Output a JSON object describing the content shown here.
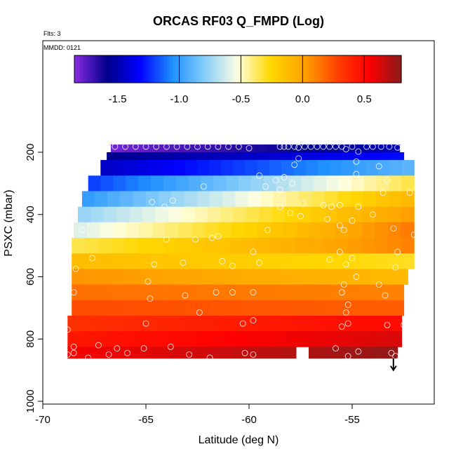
{
  "chart_data": {
    "type": "heatmap",
    "title": "ORCAS RF03 Q_FMPD (Log)",
    "corner_labels": {
      "flts": "Flts: 3",
      "mmdd": "MMDD: 0121"
    },
    "xlabel": "Latitude (deg N)",
    "ylabel": "PSXC (mbar)",
    "xlim": [
      -70,
      -51.5
    ],
    "ylim": [
      1000,
      0
    ],
    "x_ticks": [
      -70,
      -65,
      -60,
      -55
    ],
    "y_ticks": [
      200,
      400,
      600,
      800,
      1000
    ],
    "colorbar": {
      "range": [
        -1.85,
        0.8
      ],
      "ticks": [
        -1.5,
        -1.0,
        -0.5,
        0.0,
        0.5
      ],
      "tick_labels": [
        "-1.5",
        "-1.0",
        "-0.5",
        "0.0",
        "0.5"
      ],
      "colors": [
        "#8a2be2",
        "#00008b",
        "#0000ff",
        "#1e90ff",
        "#87cefa",
        "#ffffe0",
        "#ffd700",
        "#ffa500",
        "#ff4500",
        "#ff0000",
        "#8b1a1a"
      ]
    },
    "heat_bands": [
      {
        "p_top": 175,
        "p_bot": 200,
        "lat_start": -66.7,
        "lat_end": -52.7,
        "v_start": -1.8,
        "v_end": -1.48
      },
      {
        "p_top": 200,
        "p_bot": 225,
        "lat_start": -66.9,
        "lat_end": -52.5,
        "v_start": -1.58,
        "v_end": -1.3
      },
      {
        "p_top": 225,
        "p_bot": 275,
        "lat_start": -67.2,
        "lat_end": -52.0,
        "v_start": -1.45,
        "v_end": -0.9
      },
      {
        "p_top": 275,
        "p_bot": 325,
        "lat_start": -67.8,
        "lat_end": -52.0,
        "v_start": -1.2,
        "v_end": -0.35
      },
      {
        "p_top": 325,
        "p_bot": 375,
        "lat_start": -68.1,
        "lat_end": -52.0,
        "v_start": -1.0,
        "v_end": -0.1
      },
      {
        "p_top": 375,
        "p_bot": 425,
        "lat_start": -68.3,
        "lat_end": -52.0,
        "v_start": -0.75,
        "v_end": 0.02
      },
      {
        "p_top": 425,
        "p_bot": 475,
        "lat_start": -68.5,
        "lat_end": -52.0,
        "v_start": -0.6,
        "v_end": 0.12
      },
      {
        "p_top": 475,
        "p_bot": 525,
        "lat_start": -68.6,
        "lat_end": -52.0,
        "v_start": -0.35,
        "v_end": 0.1
      },
      {
        "p_top": 525,
        "p_bot": 575,
        "lat_start": -68.6,
        "lat_end": -52.0,
        "v_start": -0.12,
        "v_end": -0.3
      },
      {
        "p_top": 575,
        "p_bot": 625,
        "lat_start": -68.6,
        "lat_end": -52.3,
        "v_start": 0.05,
        "v_end": -0.1
      },
      {
        "p_top": 625,
        "p_bot": 675,
        "lat_start": -68.6,
        "lat_end": -52.5,
        "v_start": 0.15,
        "v_end": 0.1
      },
      {
        "p_top": 675,
        "p_bot": 725,
        "lat_start": -68.6,
        "lat_end": -52.5,
        "v_start": 0.25,
        "v_end": 0.2
      },
      {
        "p_top": 725,
        "p_bot": 775,
        "lat_start": -68.8,
        "lat_end": -52.6,
        "v_start": 0.35,
        "v_end": 0.5,
        "gap": [
          -57.7,
          -57.4
        ]
      },
      {
        "p_top": 775,
        "p_bot": 825,
        "lat_start": -68.8,
        "lat_end": -52.6,
        "v_start": 0.45,
        "v_end": 0.62,
        "gap": [
          -57.7,
          -57.3
        ]
      },
      {
        "p_top": 825,
        "p_bot": 862,
        "lat_start": -68.8,
        "lat_end": -52.8,
        "v_start": 0.55,
        "v_end": 0.78,
        "gap": [
          -57.7,
          -57.3
        ]
      }
    ],
    "points": [
      {
        "x": -66.5,
        "y": 182
      },
      {
        "x": -66,
        "y": 182
      },
      {
        "x": -65.5,
        "y": 182
      },
      {
        "x": -65,
        "y": 182
      },
      {
        "x": -64.5,
        "y": 182
      },
      {
        "x": -64,
        "y": 182
      },
      {
        "x": -63.5,
        "y": 182
      },
      {
        "x": -63,
        "y": 182
      },
      {
        "x": -62.5,
        "y": 182
      },
      {
        "x": -62,
        "y": 182
      },
      {
        "x": -61.5,
        "y": 182
      },
      {
        "x": -61,
        "y": 182
      },
      {
        "x": -60.5,
        "y": 182
      },
      {
        "x": -60,
        "y": 187
      },
      {
        "x": -58.5,
        "y": 182
      },
      {
        "x": -58.3,
        "y": 182
      },
      {
        "x": -58.1,
        "y": 182
      },
      {
        "x": -57.8,
        "y": 182
      },
      {
        "x": -57.6,
        "y": 185
      },
      {
        "x": -57.3,
        "y": 182
      },
      {
        "x": -57,
        "y": 182
      },
      {
        "x": -56.7,
        "y": 182
      },
      {
        "x": -56.4,
        "y": 182
      },
      {
        "x": -56.1,
        "y": 182
      },
      {
        "x": -55.8,
        "y": 182
      },
      {
        "x": -55.5,
        "y": 182
      },
      {
        "x": -55.3,
        "y": 190
      },
      {
        "x": -55,
        "y": 182
      },
      {
        "x": -54.7,
        "y": 198
      },
      {
        "x": -54.3,
        "y": 182
      },
      {
        "x": -54,
        "y": 182
      },
      {
        "x": -53.6,
        "y": 182
      },
      {
        "x": -53.2,
        "y": 182
      },
      {
        "x": -52.8,
        "y": 185
      },
      {
        "x": -57.8,
        "y": 240
      },
      {
        "x": -57.6,
        "y": 220
      },
      {
        "x": -54.8,
        "y": 230
      },
      {
        "x": -53.7,
        "y": 245
      },
      {
        "x": -59.5,
        "y": 275
      },
      {
        "x": -58.7,
        "y": 290
      },
      {
        "x": -58.3,
        "y": 280
      },
      {
        "x": -54.8,
        "y": 270
      },
      {
        "x": -53.3,
        "y": 290
      },
      {
        "x": -62.2,
        "y": 310
      },
      {
        "x": -57.9,
        "y": 300
      },
      {
        "x": -59.2,
        "y": 310
      },
      {
        "x": -58.5,
        "y": 320
      },
      {
        "x": -53.5,
        "y": 330
      },
      {
        "x": -52.2,
        "y": 330
      },
      {
        "x": -64.7,
        "y": 360
      },
      {
        "x": -64.1,
        "y": 375
      },
      {
        "x": -63.7,
        "y": 355
      },
      {
        "x": -58.5,
        "y": 375
      },
      {
        "x": -57.4,
        "y": 365
      },
      {
        "x": -56.4,
        "y": 370
      },
      {
        "x": -56,
        "y": 375
      },
      {
        "x": -55.6,
        "y": 370
      },
      {
        "x": -54.7,
        "y": 375
      },
      {
        "x": -58,
        "y": 395
      },
      {
        "x": -57.5,
        "y": 405
      },
      {
        "x": -56.2,
        "y": 415
      },
      {
        "x": -55,
        "y": 420
      },
      {
        "x": -54,
        "y": 400
      },
      {
        "x": -68.1,
        "y": 450
      },
      {
        "x": -59.1,
        "y": 450
      },
      {
        "x": -55.4,
        "y": 450
      },
      {
        "x": -55.6,
        "y": 435
      },
      {
        "x": -53,
        "y": 445
      },
      {
        "x": -52,
        "y": 465
      },
      {
        "x": -61.8,
        "y": 475
      },
      {
        "x": -61.5,
        "y": 470
      },
      {
        "x": -64,
        "y": 480
      },
      {
        "x": -55.6,
        "y": 520
      },
      {
        "x": -59.8,
        "y": 520
      },
      {
        "x": -62.6,
        "y": 480
      },
      {
        "x": -55,
        "y": 540
      },
      {
        "x": -52.8,
        "y": 520
      },
      {
        "x": -68.4,
        "y": 575
      },
      {
        "x": -67.6,
        "y": 540
      },
      {
        "x": -64.6,
        "y": 560
      },
      {
        "x": -63.2,
        "y": 555
      },
      {
        "x": -61.3,
        "y": 550
      },
      {
        "x": -60.8,
        "y": 565
      },
      {
        "x": -59.5,
        "y": 555
      },
      {
        "x": -56.1,
        "y": 545
      },
      {
        "x": -55.3,
        "y": 560
      },
      {
        "x": -52.9,
        "y": 570
      },
      {
        "x": -64.9,
        "y": 615
      },
      {
        "x": -54.8,
        "y": 600
      },
      {
        "x": -55.4,
        "y": 625
      },
      {
        "x": -55.5,
        "y": 650
      },
      {
        "x": -53.7,
        "y": 625
      },
      {
        "x": -52.1,
        "y": 650
      },
      {
        "x": -68.5,
        "y": 650
      },
      {
        "x": -63.1,
        "y": 660
      },
      {
        "x": -61.6,
        "y": 650
      },
      {
        "x": -60.8,
        "y": 650
      },
      {
        "x": -59.8,
        "y": 650
      },
      {
        "x": -53.4,
        "y": 660
      },
      {
        "x": -64.8,
        "y": 670
      },
      {
        "x": -55.3,
        "y": 715
      },
      {
        "x": -55.2,
        "y": 690
      },
      {
        "x": -52.3,
        "y": 690
      },
      {
        "x": -62.4,
        "y": 715
      },
      {
        "x": -68.8,
        "y": 770
      },
      {
        "x": -65,
        "y": 750
      },
      {
        "x": -60.3,
        "y": 750
      },
      {
        "x": -59.8,
        "y": 740
      },
      {
        "x": -55.5,
        "y": 760
      },
      {
        "x": -55.2,
        "y": 750
      },
      {
        "x": -53.3,
        "y": 755
      },
      {
        "x": -52.5,
        "y": 755
      },
      {
        "x": -68.5,
        "y": 825
      },
      {
        "x": -68.8,
        "y": 850
      },
      {
        "x": -68.5,
        "y": 845
      },
      {
        "x": -67.3,
        "y": 820
      },
      {
        "x": -66.4,
        "y": 830
      },
      {
        "x": -65.9,
        "y": 845
      },
      {
        "x": -65.1,
        "y": 830
      },
      {
        "x": -63.8,
        "y": 825
      },
      {
        "x": -62.9,
        "y": 850
      },
      {
        "x": -60.2,
        "y": 845
      },
      {
        "x": -59.8,
        "y": 850
      },
      {
        "x": -55.2,
        "y": 855
      },
      {
        "x": -54.7,
        "y": 840
      },
      {
        "x": -53.1,
        "y": 845
      },
      {
        "x": -52.9,
        "y": 855
      },
      {
        "x": -61.9,
        "y": 860
      },
      {
        "x": -67.8,
        "y": 860
      },
      {
        "x": -66.8,
        "y": 850
      },
      {
        "x": -55.8,
        "y": 830
      }
    ],
    "arrow": {
      "x": -53.0,
      "y_from": 862,
      "y_to": 900
    }
  }
}
